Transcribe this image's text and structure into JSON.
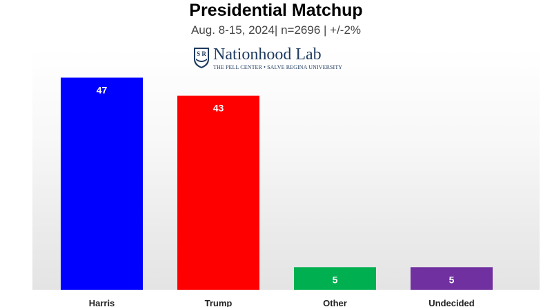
{
  "header": {
    "title": "Presidential Matchup",
    "subtitle": "Aug. 8-15, 2024| n=2696 | +/-2%"
  },
  "logo": {
    "name": "Nationhood Lab",
    "tagline": "THE PELL CENTER • SALVE REGINA UNIVERSITY",
    "shield_letters": "S R"
  },
  "chart_data": {
    "type": "bar",
    "categories": [
      "Harris",
      "Trump",
      "Other",
      "Undecided"
    ],
    "values": [
      47,
      43,
      5,
      5
    ],
    "colors": [
      "#0000ff",
      "#ff0000",
      "#00b050",
      "#7030a0"
    ],
    "title": "Presidential Matchup",
    "xlabel": "",
    "ylabel": "",
    "ylim": [
      0,
      53.5
    ],
    "grid": false,
    "legend": "none"
  }
}
